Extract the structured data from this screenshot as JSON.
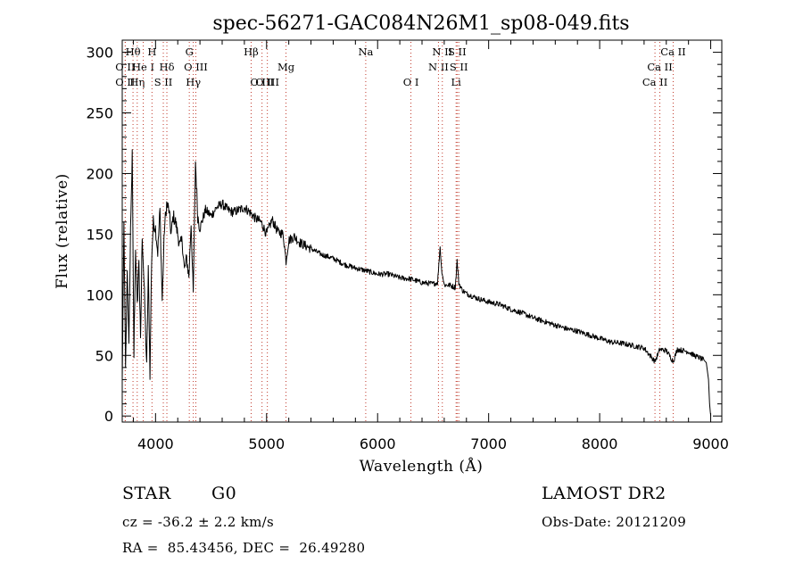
{
  "title": "spec-56271-GAC084N26M1_sp08-049.fits",
  "info": {
    "object_type": "STAR",
    "subclass": "G0",
    "survey": "LAMOST DR2",
    "redshift": "cz = -36.2 ± 2.2 km/s",
    "obs_date": "Obs-Date: 20121209",
    "coords": "RA =  85.43456, DEC =  26.49280"
  },
  "chart_data": {
    "type": "line",
    "title": "spec-56271-GAC084N26M1_sp08-049.fits",
    "xlabel": "Wavelength (Å)",
    "ylabel": "Flux (relative)",
    "xlim": [
      3700,
      9100
    ],
    "ylim": [
      -5,
      310
    ],
    "xticks": [
      4000,
      5000,
      6000,
      7000,
      8000,
      9000
    ],
    "yticks": [
      0,
      50,
      100,
      150,
      200,
      250,
      300
    ],
    "grid": false,
    "series": [
      {
        "color": "#000000",
        "x": [
          3700,
          3715,
          3730,
          3745,
          3760,
          3775,
          3790,
          3805,
          3820,
          3835,
          3850,
          3865,
          3880,
          3900,
          3920,
          3935,
          3950,
          3965,
          3980,
          4000,
          4020,
          4040,
          4060,
          4080,
          4100,
          4120,
          4140,
          4160,
          4180,
          4200,
          4220,
          4240,
          4260,
          4280,
          4300,
          4320,
          4340,
          4360,
          4380,
          4400,
          4450,
          4500,
          4550,
          4600,
          4650,
          4700,
          4750,
          4800,
          4850,
          4900,
          4950,
          5000,
          5050,
          5100,
          5150,
          5175,
          5200,
          5250,
          5300,
          5400,
          5500,
          5600,
          5700,
          5800,
          5890,
          6000,
          6100,
          6200,
          6300,
          6400,
          6500,
          6540,
          6563,
          6575,
          6600,
          6650,
          6700,
          6716,
          6731,
          6760,
          6800,
          6900,
          7000,
          7100,
          7200,
          7300,
          7400,
          7500,
          7600,
          7700,
          7800,
          7900,
          8000,
          8100,
          8200,
          8300,
          8400,
          8498,
          8542,
          8600,
          8662,
          8700,
          8800,
          8850,
          8900,
          8940,
          8960,
          8980,
          8990,
          9000
        ],
        "y": [
          30,
          160,
          40,
          120,
          60,
          150,
          215,
          50,
          140,
          90,
          130,
          60,
          150,
          100,
          40,
          120,
          35,
          130,
          160,
          155,
          135,
          170,
          95,
          155,
          175,
          170,
          150,
          165,
          160,
          150,
          140,
          145,
          120,
          130,
          115,
          160,
          100,
          210,
          165,
          155,
          170,
          165,
          172,
          175,
          170,
          168,
          170,
          172,
          168,
          163,
          160,
          150,
          162,
          152,
          150,
          128,
          145,
          148,
          143,
          138,
          133,
          130,
          125,
          122,
          120,
          117,
          117,
          114,
          113,
          110,
          109,
          110,
          140,
          122,
          108,
          108,
          106,
          128,
          110,
          104,
          101,
          97,
          94,
          92,
          88,
          85,
          81,
          78,
          75,
          72,
          70,
          67,
          64,
          61,
          60,
          58,
          56,
          45,
          55,
          54,
          45,
          55,
          53,
          50,
          48,
          46,
          44,
          30,
          10,
          0
        ]
      }
    ],
    "spectral_lines": [
      {
        "label": "O II",
        "wavelength": 3727,
        "row": 3
      },
      {
        "label": "O II",
        "wavelength": 3727,
        "row": 2
      },
      {
        "label": "Hθ",
        "wavelength": 3797,
        "row": 1
      },
      {
        "label": "Hη",
        "wavelength": 3835,
        "row": 3
      },
      {
        "label": "He I",
        "wavelength": 3889,
        "row": 2
      },
      {
        "label": "H",
        "wavelength": 3968,
        "row": 1
      },
      {
        "label": "Hδ",
        "wavelength": 4102,
        "row": 2
      },
      {
        "label": "S II",
        "wavelength": 4070,
        "row": 3
      },
      {
        "label": "G",
        "wavelength": 4304,
        "row": 1
      },
      {
        "label": "O III",
        "wavelength": 4363,
        "row": 2
      },
      {
        "label": "Hγ",
        "wavelength": 4340,
        "row": 3
      },
      {
        "label": "Hβ",
        "wavelength": 4861,
        "row": 1
      },
      {
        "label": "O III",
        "wavelength": 4959,
        "row": 3
      },
      {
        "label": "O III",
        "wavelength": 5007,
        "row": 3
      },
      {
        "label": "Mg",
        "wavelength": 5175,
        "row": 2
      },
      {
        "label": "Na",
        "wavelength": 5893,
        "row": 1
      },
      {
        "label": "O I",
        "wavelength": 6300,
        "row": 3
      },
      {
        "label": "N II",
        "wavelength": 6548,
        "row": 2
      },
      {
        "label": "N II",
        "wavelength": 6583,
        "row": 1
      },
      {
        "label": "Li",
        "wavelength": 6707,
        "row": 3
      },
      {
        "label": "S II",
        "wavelength": 6716,
        "row": 1
      },
      {
        "label": "S II",
        "wavelength": 6731,
        "row": 2
      },
      {
        "label": "Ca II",
        "wavelength": 8498,
        "row": 3
      },
      {
        "label": "Ca II",
        "wavelength": 8542,
        "row": 2
      },
      {
        "label": "Ca II",
        "wavelength": 8662,
        "row": 1
      }
    ]
  }
}
